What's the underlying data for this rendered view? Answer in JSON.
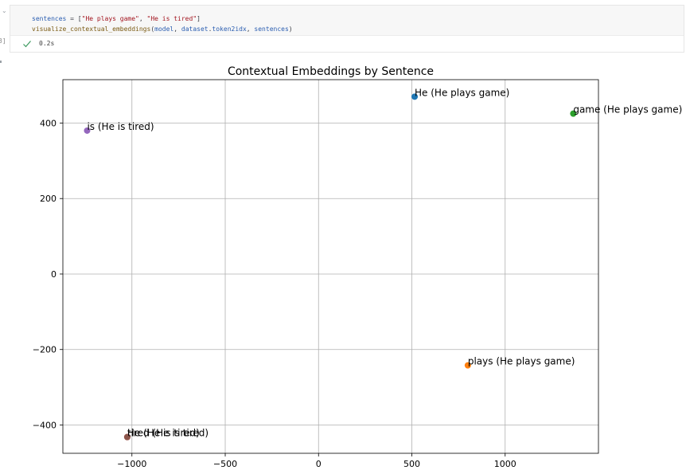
{
  "cell": {
    "execution_count": "3]",
    "code_lines": [
      [
        {
          "t": "sentences",
          "c": "var"
        },
        {
          "t": " = [",
          "c": "plain"
        },
        {
          "t": "\"He plays game\"",
          "c": "str"
        },
        {
          "t": ", ",
          "c": "plain"
        },
        {
          "t": "\"He is tired\"",
          "c": "str"
        },
        {
          "t": "]",
          "c": "plain"
        }
      ],
      [
        {
          "t": "visualize_contextual_embeddings",
          "c": "fn"
        },
        {
          "t": "(",
          "c": "plain"
        },
        {
          "t": "model",
          "c": "var"
        },
        {
          "t": ", ",
          "c": "plain"
        },
        {
          "t": "dataset",
          "c": "var"
        },
        {
          "t": ".",
          "c": "plain"
        },
        {
          "t": "token2idx",
          "c": "var"
        },
        {
          "t": ", ",
          "c": "plain"
        },
        {
          "t": "sentences",
          "c": "var"
        },
        {
          "t": ")",
          "c": "plain"
        }
      ]
    ],
    "status_icon": "check-icon",
    "exec_time": "0.2s"
  },
  "chart_data": {
    "type": "scatter",
    "title": "Contextual Embeddings by Sentence",
    "xlabel": "",
    "ylabel": "",
    "xlim": [
      -1370,
      1500
    ],
    "ylim": [
      -475,
      515
    ],
    "xticks": [
      -1000,
      -500,
      0,
      500,
      1000
    ],
    "yticks": [
      -400,
      -200,
      0,
      200,
      400
    ],
    "xtick_labels": [
      "−1000",
      "−500",
      "0",
      "500",
      "1000"
    ],
    "ytick_labels": [
      "−400",
      "−200",
      "0",
      "200",
      "400"
    ],
    "grid": true,
    "points": [
      {
        "label": "He (He plays game)",
        "x": 515,
        "y": 470,
        "color": "#1f77b4"
      },
      {
        "label": "plays (He plays game)",
        "x": 800,
        "y": -242,
        "color": "#ff7f0e"
      },
      {
        "label": "game (He plays game)",
        "x": 1365,
        "y": 425,
        "color": "#2ca02c"
      },
      {
        "label": "He (He is tired)",
        "x": -1025,
        "y": -432,
        "color": "#d62728"
      },
      {
        "label": "is (He is tired)",
        "x": -1240,
        "y": 380,
        "color": "#9467bd"
      },
      {
        "label": "tired (He is tired)",
        "x": -1025,
        "y": -432,
        "color": "#8c564b"
      }
    ]
  }
}
